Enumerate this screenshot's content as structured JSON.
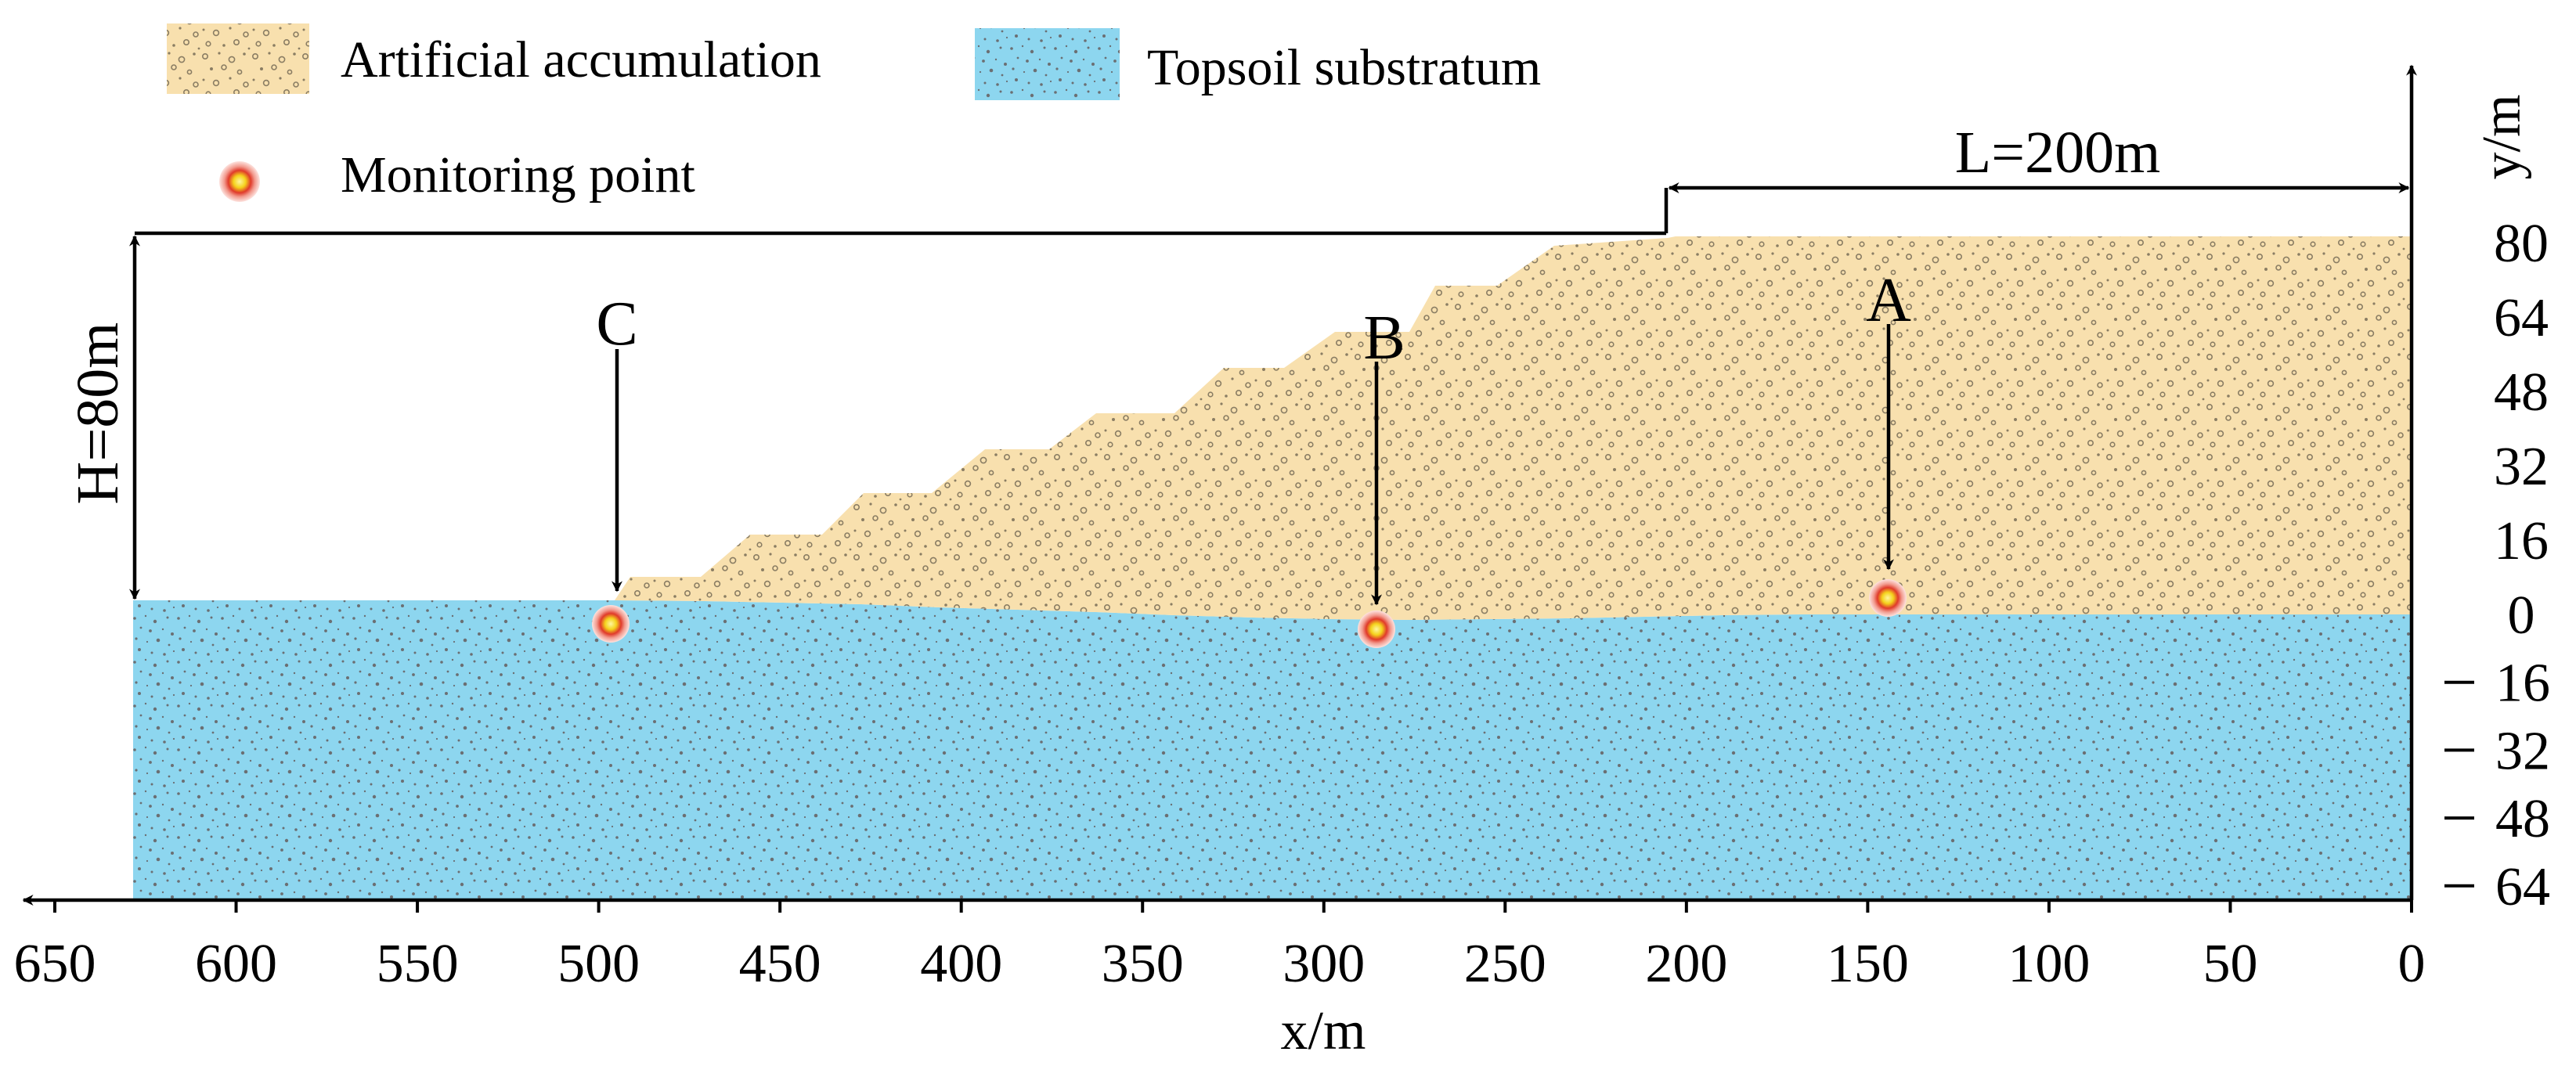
{
  "legend": {
    "accumulation_label": "Artificial accumulation",
    "substratum_label": "Topsoil substratum",
    "monitoring_label": "Monitoring point"
  },
  "dimensions": {
    "length_label": "L=200m",
    "height_label": "H=80m"
  },
  "axes": {
    "x_title": "x/m",
    "y_title": "y/m",
    "x_ticks": [
      650,
      600,
      550,
      500,
      450,
      400,
      350,
      300,
      250,
      200,
      150,
      100,
      50,
      0
    ],
    "y_ticks_positive": [
      80,
      64,
      48,
      32,
      16,
      0
    ],
    "y_ticks_negative": [
      16,
      32,
      48,
      64
    ]
  },
  "monitoring_points": [
    {
      "label": "A",
      "x_m": 146,
      "y_m": 4
    },
    {
      "label": "B",
      "x_m": 287,
      "y_m": -3
    },
    {
      "label": "C",
      "x_m": 501,
      "y_m": -2
    }
  ],
  "colors": {
    "accumulation": "#f8e0ae",
    "substratum": "#8dd6ef",
    "speckle": "#6b6f73",
    "marker_core": "#f4d21c",
    "marker_ring": "#e03a2a"
  }
}
